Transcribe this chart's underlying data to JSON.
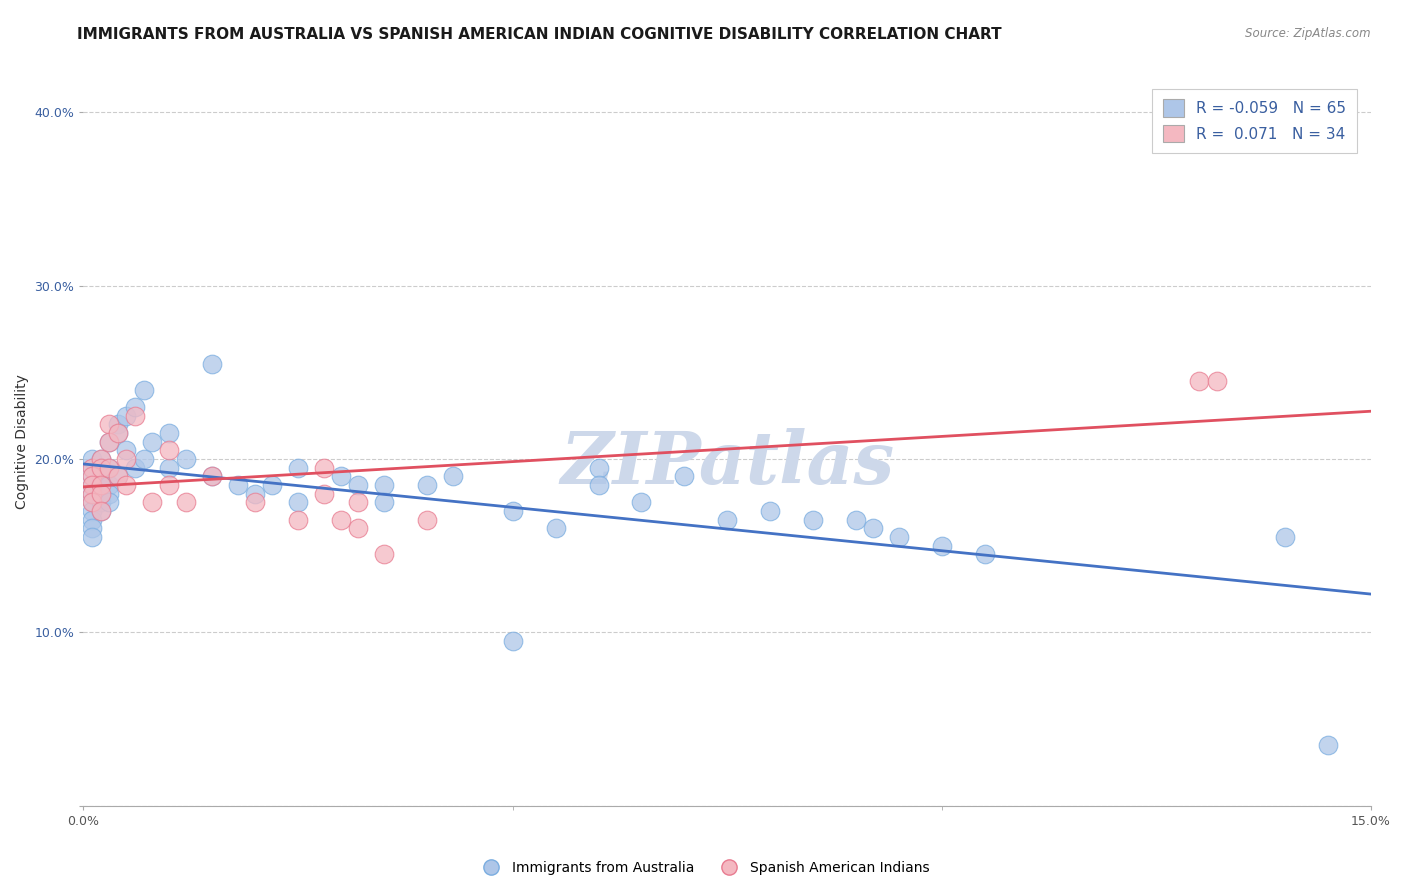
{
  "title": "IMMIGRANTS FROM AUSTRALIA VS SPANISH AMERICAN INDIAN COGNITIVE DISABILITY CORRELATION CHART",
  "source": "Source: ZipAtlas.com",
  "ylabel": "Cognitive Disability",
  "xlabel": "",
  "xlim": [
    0.0,
    0.15
  ],
  "ylim": [
    0.0,
    0.42
  ],
  "yticks": [
    0.0,
    0.1,
    0.2,
    0.3,
    0.4
  ],
  "yticklabels": [
    "",
    "10.0%",
    "20.0%",
    "30.0%",
    "40.0%"
  ],
  "watermark": "ZIPatlas",
  "series_blue": {
    "name": "Immigrants from Australia",
    "color": "#aec6e8",
    "edge_color": "#7aade0",
    "line_color": "#4472c4",
    "x": [
      0.001,
      0.001,
      0.001,
      0.001,
      0.001,
      0.001,
      0.001,
      0.001,
      0.001,
      0.001,
      0.002,
      0.002,
      0.002,
      0.002,
      0.002,
      0.002,
      0.002,
      0.003,
      0.003,
      0.003,
      0.003,
      0.003,
      0.004,
      0.004,
      0.004,
      0.005,
      0.005,
      0.006,
      0.006,
      0.007,
      0.007,
      0.008,
      0.01,
      0.01,
      0.012,
      0.015,
      0.015,
      0.018,
      0.02,
      0.022,
      0.025,
      0.025,
      0.03,
      0.032,
      0.035,
      0.035,
      0.04,
      0.043,
      0.05,
      0.05,
      0.055,
      0.06,
      0.06,
      0.065,
      0.07,
      0.075,
      0.08,
      0.085,
      0.09,
      0.092,
      0.095,
      0.1,
      0.105,
      0.14,
      0.145
    ],
    "y": [
      0.19,
      0.195,
      0.185,
      0.2,
      0.175,
      0.18,
      0.17,
      0.165,
      0.16,
      0.155,
      0.19,
      0.185,
      0.195,
      0.18,
      0.175,
      0.17,
      0.2,
      0.195,
      0.21,
      0.185,
      0.18,
      0.175,
      0.22,
      0.19,
      0.215,
      0.225,
      0.205,
      0.23,
      0.195,
      0.24,
      0.2,
      0.21,
      0.215,
      0.195,
      0.2,
      0.255,
      0.19,
      0.185,
      0.18,
      0.185,
      0.195,
      0.175,
      0.19,
      0.185,
      0.185,
      0.175,
      0.185,
      0.19,
      0.17,
      0.095,
      0.16,
      0.195,
      0.185,
      0.175,
      0.19,
      0.165,
      0.17,
      0.165,
      0.165,
      0.16,
      0.155,
      0.15,
      0.145,
      0.155,
      0.035
    ]
  },
  "series_pink": {
    "name": "Spanish American Indians",
    "color": "#f4b8c1",
    "edge_color": "#e87b90",
    "line_color": "#e05060",
    "x": [
      0.001,
      0.001,
      0.001,
      0.001,
      0.001,
      0.002,
      0.002,
      0.002,
      0.002,
      0.002,
      0.003,
      0.003,
      0.003,
      0.004,
      0.004,
      0.005,
      0.005,
      0.006,
      0.008,
      0.01,
      0.01,
      0.012,
      0.015,
      0.02,
      0.025,
      0.028,
      0.028,
      0.03,
      0.032,
      0.032,
      0.035,
      0.04,
      0.13,
      0.132
    ],
    "y": [
      0.195,
      0.19,
      0.185,
      0.18,
      0.175,
      0.2,
      0.195,
      0.185,
      0.18,
      0.17,
      0.22,
      0.21,
      0.195,
      0.215,
      0.19,
      0.2,
      0.185,
      0.225,
      0.175,
      0.205,
      0.185,
      0.175,
      0.19,
      0.175,
      0.165,
      0.195,
      0.18,
      0.165,
      0.175,
      0.16,
      0.145,
      0.165,
      0.245,
      0.245
    ]
  },
  "title_fontsize": 11,
  "axis_label_fontsize": 10,
  "tick_fontsize": 9,
  "legend_fontsize": 11,
  "background_color": "#ffffff",
  "grid_color": "#cccccc",
  "title_color": "#1a1a1a",
  "source_color": "#888888",
  "watermark_color": "#cdd8ea",
  "watermark_fontsize": 52
}
